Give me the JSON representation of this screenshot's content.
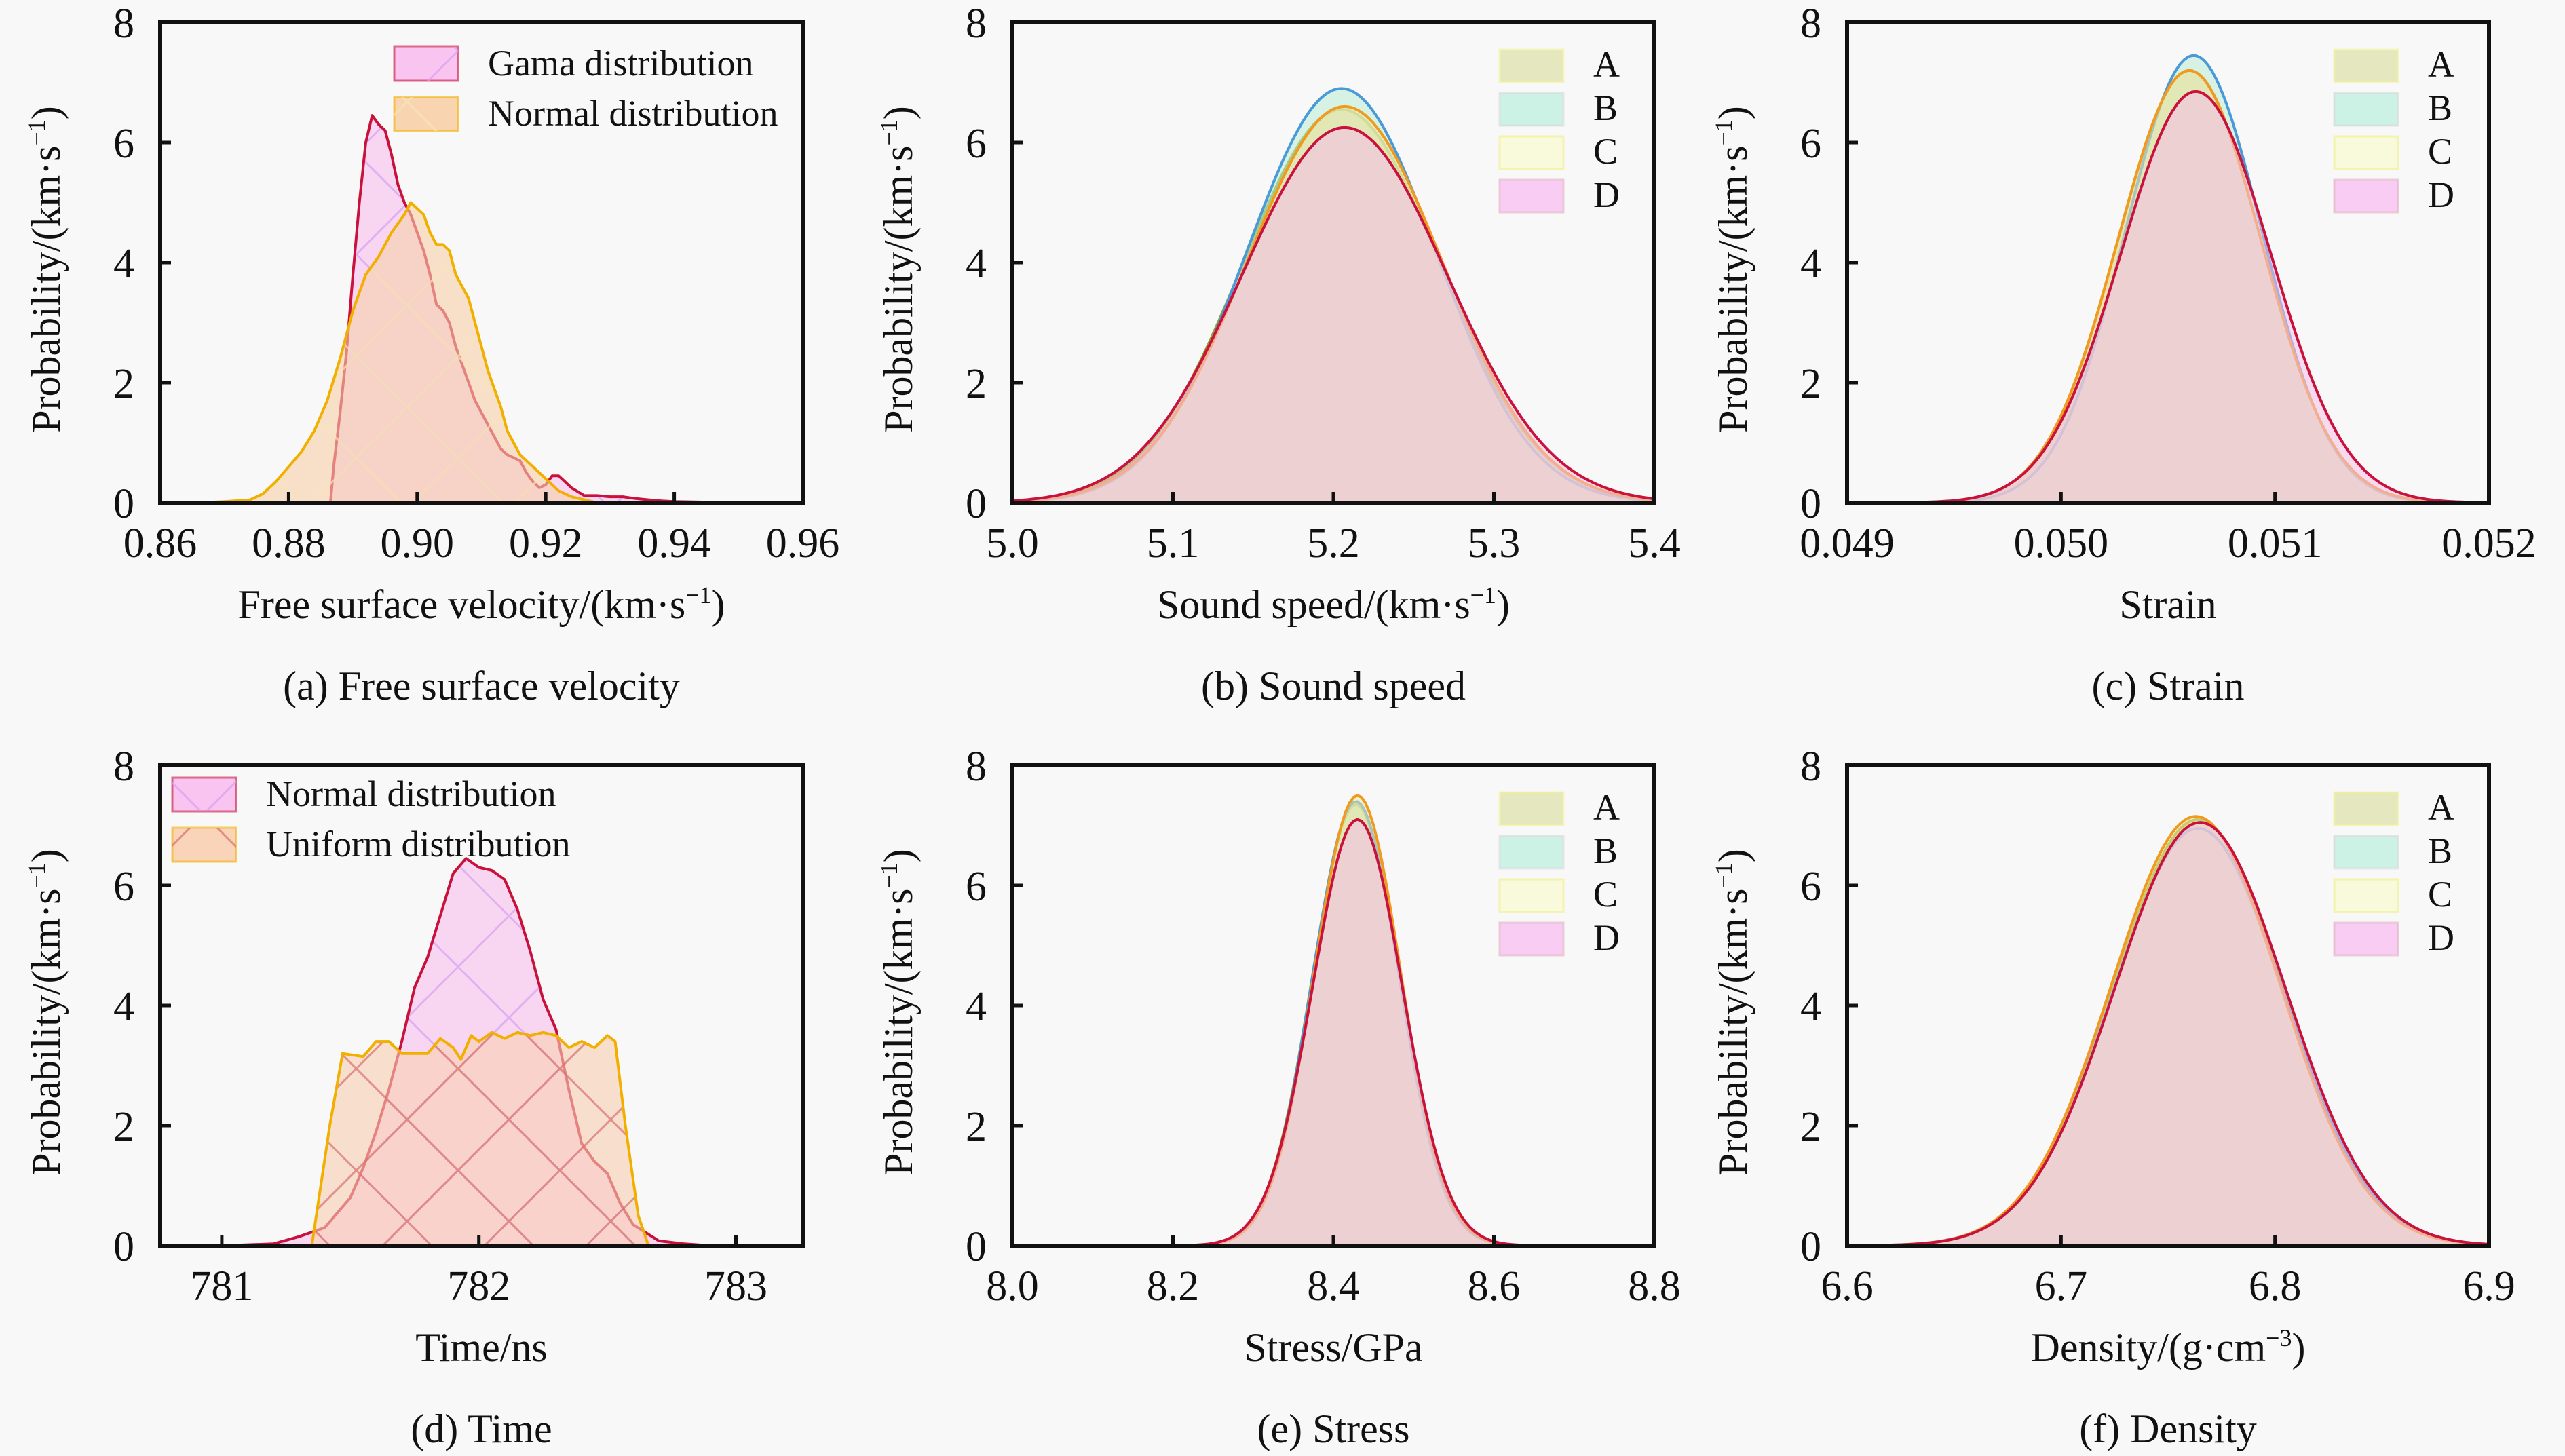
{
  "figure": {
    "background": "#f8f8f8"
  },
  "styles": {
    "gama": {
      "fill": "#f8bfee",
      "stroke": "#c8123c",
      "hatch": "#d6a0f0"
    },
    "normal_a": {
      "fill": "#f7cfa8",
      "stroke": "#f1b000",
      "hatch": "#f7e6b8"
    },
    "normal_d": {
      "fill": "#f8bfee",
      "stroke": "#c8123c",
      "hatch": "#d6a0f0"
    },
    "uniform": {
      "fill": "#f8cfb0",
      "stroke": "#f1b000",
      "hatch": "#d9706f"
    },
    "A": {
      "fill": "#c9c98a",
      "stroke": "#8aa82a",
      "legend_fill": "#e2e4b8",
      "legend_edge": "#f2f29a"
    },
    "B": {
      "fill": "#b9ecd6",
      "stroke": "#4a9ad8",
      "legend_fill": "#c6f0e2",
      "legend_edge": "#d8d8d8"
    },
    "C": {
      "fill": "#f6e7a6",
      "stroke": "#f19a20",
      "legend_fill": "#f8f8d8",
      "legend_edge": "#eef088"
    },
    "D": {
      "fill": "#f5c0ea",
      "stroke": "#c8123c",
      "legend_fill": "#f8c8f2",
      "legend_edge": "#e0b0c0"
    }
  },
  "chart_data": [
    {
      "id": "a",
      "type": "area",
      "caption": "(a) Free surface velocity",
      "xlabel": "Free surface velocity/(km·s",
      "xlabel_sup": "−1",
      "xlabel_tail": ")",
      "ylabel": "Probability/(km·s",
      "ylabel_sup": "−1",
      "ylabel_tail": ")",
      "xlim": [
        0.86,
        0.96
      ],
      "ylim": [
        0,
        8
      ],
      "xticks": [
        0.86,
        0.88,
        0.9,
        0.92,
        0.94,
        0.96
      ],
      "xtick_labels": [
        "0.86",
        "0.88",
        "0.90",
        "0.92",
        "0.94",
        "0.96"
      ],
      "yticks": [
        0,
        2,
        4,
        6,
        8
      ],
      "ytick_labels": [
        "0",
        "2",
        "4",
        "6",
        "8"
      ],
      "legend_position": "top-right",
      "series": [
        {
          "name": "Gama distribution",
          "style": "gama",
          "x": [
            0.8865,
            0.887,
            0.888,
            0.889,
            0.89,
            0.891,
            0.892,
            0.893,
            0.894,
            0.895,
            0.896,
            0.897,
            0.898,
            0.899,
            0.9,
            0.901,
            0.902,
            0.903,
            0.904,
            0.905,
            0.906,
            0.907,
            0.908,
            0.909,
            0.91,
            0.911,
            0.912,
            0.913,
            0.914,
            0.915,
            0.916,
            0.917,
            0.918,
            0.919,
            0.92,
            0.921,
            0.922,
            0.923,
            0.924,
            0.926,
            0.928,
            0.93,
            0.932,
            0.934,
            0.936,
            0.938,
            0.94,
            0.945,
            0.95,
            0.955
          ],
          "y": [
            0.0,
            0.6,
            1.5,
            2.5,
            3.8,
            5.0,
            6.0,
            6.45,
            6.3,
            6.2,
            5.8,
            5.3,
            5.0,
            4.8,
            4.5,
            4.2,
            3.8,
            3.3,
            3.2,
            3.0,
            2.6,
            2.3,
            2.0,
            1.7,
            1.5,
            1.3,
            1.1,
            0.9,
            0.8,
            0.75,
            0.7,
            0.5,
            0.35,
            0.25,
            0.3,
            0.45,
            0.45,
            0.35,
            0.25,
            0.12,
            0.12,
            0.1,
            0.1,
            0.07,
            0.05,
            0.03,
            0.02,
            0.01,
            0.01,
            0.0
          ]
        },
        {
          "name": "Normal distribution",
          "style": "normal_a",
          "x": [
            0.866,
            0.87,
            0.874,
            0.876,
            0.878,
            0.88,
            0.882,
            0.884,
            0.886,
            0.888,
            0.89,
            0.892,
            0.894,
            0.896,
            0.898,
            0.899,
            0.9,
            0.901,
            0.902,
            0.903,
            0.904,
            0.905,
            0.906,
            0.907,
            0.908,
            0.909,
            0.91,
            0.911,
            0.912,
            0.913,
            0.914,
            0.915,
            0.916,
            0.918,
            0.92,
            0.922,
            0.924,
            0.926,
            0.928
          ],
          "y": [
            0.0,
            0.02,
            0.05,
            0.15,
            0.35,
            0.6,
            0.85,
            1.2,
            1.7,
            2.4,
            3.2,
            3.8,
            4.1,
            4.5,
            4.8,
            5.0,
            4.9,
            4.8,
            4.5,
            4.3,
            4.3,
            4.2,
            3.8,
            3.6,
            3.4,
            3.0,
            2.6,
            2.2,
            1.9,
            1.6,
            1.2,
            1.0,
            0.8,
            0.6,
            0.4,
            0.2,
            0.1,
            0.05,
            0.0
          ]
        }
      ]
    },
    {
      "id": "b",
      "type": "area",
      "caption": "(b) Sound speed",
      "xlabel": "Sound speed/(km·s",
      "xlabel_sup": "−1",
      "xlabel_tail": ")",
      "ylabel": "Probability/(km·s",
      "ylabel_sup": "−1",
      "ylabel_tail": ")",
      "xlim": [
        5.0,
        5.4
      ],
      "ylim": [
        0,
        8
      ],
      "xticks": [
        5.0,
        5.1,
        5.2,
        5.3,
        5.4
      ],
      "xtick_labels": [
        "5.0",
        "5.1",
        "5.2",
        "5.3",
        "5.4"
      ],
      "yticks": [
        0,
        2,
        4,
        6,
        8
      ],
      "ytick_labels": [
        "0",
        "2",
        "4",
        "6",
        "8"
      ],
      "legend_position": "top-right",
      "gaussian": true,
      "series": [
        {
          "name": "A",
          "style": "A",
          "mean": 5.205,
          "sd": 0.0615,
          "peak": 6.55
        },
        {
          "name": "B",
          "style": "B",
          "mean": 5.205,
          "sd": 0.059,
          "peak": 6.9
        },
        {
          "name": "C",
          "style": "C",
          "mean": 5.207,
          "sd": 0.061,
          "peak": 6.6
        },
        {
          "name": "D",
          "style": "D",
          "mean": 5.207,
          "sd": 0.064,
          "peak": 6.25
        }
      ]
    },
    {
      "id": "c",
      "type": "area",
      "caption": "(c) Strain",
      "xlabel": "Strain",
      "xlabel_sup": "",
      "xlabel_tail": "",
      "ylabel": "Probability/(km·s",
      "ylabel_sup": "−1",
      "ylabel_tail": ")",
      "xlim": [
        0.049,
        0.052
      ],
      "ylim": [
        0,
        8
      ],
      "xticks": [
        0.049,
        0.05,
        0.051,
        0.052
      ],
      "xtick_labels": [
        "0.049",
        "0.050",
        "0.051",
        "0.052"
      ],
      "yticks": [
        0,
        2,
        4,
        6,
        8
      ],
      "ytick_labels": [
        "0",
        "2",
        "4",
        "6",
        "8"
      ],
      "legend_position": "top-right",
      "gaussian": true,
      "series": [
        {
          "name": "A",
          "style": "A",
          "mean": 0.0506,
          "sd": 0.000335,
          "peak": 7.2
        },
        {
          "name": "B",
          "style": "B",
          "mean": 0.05062,
          "sd": 0.00032,
          "peak": 7.45
        },
        {
          "name": "C",
          "style": "C",
          "mean": 0.0506,
          "sd": 0.000335,
          "peak": 7.2
        },
        {
          "name": "D",
          "style": "D",
          "mean": 0.05063,
          "sd": 0.00035,
          "peak": 6.85
        }
      ]
    },
    {
      "id": "d",
      "type": "area",
      "caption": "(d) Time",
      "xlabel": "Time/ns",
      "xlabel_sup": "",
      "xlabel_tail": "",
      "ylabel": "Probability/(km·s",
      "ylabel_sup": "−1",
      "ylabel_tail": ")",
      "xlim": [
        780.76,
        783.26
      ],
      "ylim": [
        0,
        8
      ],
      "xticks": [
        781,
        782,
        783
      ],
      "xtick_labels": [
        "781",
        "782",
        "783"
      ],
      "yticks": [
        0,
        2,
        4,
        6,
        8
      ],
      "ytick_labels": [
        "0",
        "2",
        "4",
        "6",
        "8"
      ],
      "legend_position": "top-left",
      "series": [
        {
          "name": "Normal distribution",
          "style": "normal_d",
          "x": [
            781.0,
            781.2,
            781.3,
            781.4,
            781.5,
            781.55,
            781.6,
            781.65,
            781.7,
            781.75,
            781.8,
            781.85,
            781.9,
            781.95,
            782.0,
            782.05,
            782.1,
            782.15,
            782.2,
            782.25,
            782.3,
            782.35,
            782.4,
            782.45,
            782.5,
            782.55,
            782.6,
            782.7,
            782.8,
            782.9
          ],
          "y": [
            0.0,
            0.03,
            0.15,
            0.3,
            0.8,
            1.3,
            1.9,
            2.6,
            3.4,
            4.3,
            4.8,
            5.5,
            6.2,
            6.45,
            6.3,
            6.25,
            6.1,
            5.6,
            4.9,
            4.1,
            3.6,
            2.6,
            1.7,
            1.4,
            1.2,
            0.7,
            0.35,
            0.08,
            0.03,
            0.0
          ]
        },
        {
          "name": "Uniform distribution",
          "style": "uniform",
          "x": [
            781.35,
            781.42,
            781.47,
            781.55,
            781.6,
            781.65,
            781.7,
            781.75,
            781.8,
            781.85,
            781.9,
            781.93,
            781.97,
            782.0,
            782.05,
            782.1,
            782.15,
            782.2,
            782.25,
            782.3,
            782.35,
            782.4,
            782.45,
            782.5,
            782.53,
            782.57,
            782.62,
            782.66
          ],
          "y": [
            0.0,
            2.0,
            3.2,
            3.15,
            3.4,
            3.4,
            3.2,
            3.2,
            3.2,
            3.45,
            3.3,
            3.1,
            3.5,
            3.4,
            3.55,
            3.45,
            3.55,
            3.5,
            3.55,
            3.5,
            3.3,
            3.4,
            3.3,
            3.5,
            3.4,
            2.0,
            0.5,
            0.0
          ]
        }
      ]
    },
    {
      "id": "e",
      "type": "area",
      "caption": "(e) Stress",
      "xlabel": "Stress/GPa",
      "xlabel_sup": "",
      "xlabel_tail": "",
      "ylabel": "Probability/(km·s",
      "ylabel_sup": "−1",
      "ylabel_tail": ")",
      "xlim": [
        8.0,
        8.8
      ],
      "ylim": [
        0,
        8
      ],
      "xticks": [
        8.0,
        8.2,
        8.4,
        8.6,
        8.8
      ],
      "xtick_labels": [
        "8.0",
        "8.2",
        "8.4",
        "8.6",
        "8.8"
      ],
      "yticks": [
        0,
        2,
        4,
        6,
        8
      ],
      "ytick_labels": [
        "0",
        "2",
        "4",
        "6",
        "8"
      ],
      "legend_position": "top-right",
      "gaussian": true,
      "series": [
        {
          "name": "A",
          "style": "A",
          "mean": 8.428,
          "sd": 0.0545,
          "peak": 7.35
        },
        {
          "name": "B",
          "style": "B",
          "mean": 8.428,
          "sd": 0.054,
          "peak": 7.4
        },
        {
          "name": "C",
          "style": "C",
          "mean": 8.43,
          "sd": 0.054,
          "peak": 7.5
        },
        {
          "name": "D",
          "style": "D",
          "mean": 8.43,
          "sd": 0.056,
          "peak": 7.1
        }
      ]
    },
    {
      "id": "f",
      "type": "area",
      "caption": "(f) Density",
      "xlabel": "Density/(g·cm",
      "xlabel_sup": "−3",
      "xlabel_tail": ")",
      "ylabel": "Probability/(km·s",
      "ylabel_sup": "−1",
      "ylabel_tail": ")",
      "xlim": [
        6.6,
        6.9
      ],
      "ylim": [
        0,
        8
      ],
      "xticks": [
        6.6,
        6.7,
        6.8,
        6.9
      ],
      "xtick_labels": [
        "6.6",
        "6.7",
        "6.8",
        "6.9"
      ],
      "yticks": [
        0,
        2,
        4,
        6,
        8
      ],
      "ytick_labels": [
        "0",
        "2",
        "4",
        "6",
        "8"
      ],
      "legend_position": "top-right",
      "gaussian": true,
      "series": [
        {
          "name": "A",
          "style": "A",
          "mean": 6.764,
          "sd": 0.0395,
          "peak": 7.1
        },
        {
          "name": "B",
          "style": "B",
          "mean": 6.764,
          "sd": 0.04,
          "peak": 6.95
        },
        {
          "name": "C",
          "style": "C",
          "mean": 6.763,
          "sd": 0.0395,
          "peak": 7.15
        },
        {
          "name": "D",
          "style": "D",
          "mean": 6.765,
          "sd": 0.04,
          "peak": 7.05
        }
      ]
    }
  ]
}
